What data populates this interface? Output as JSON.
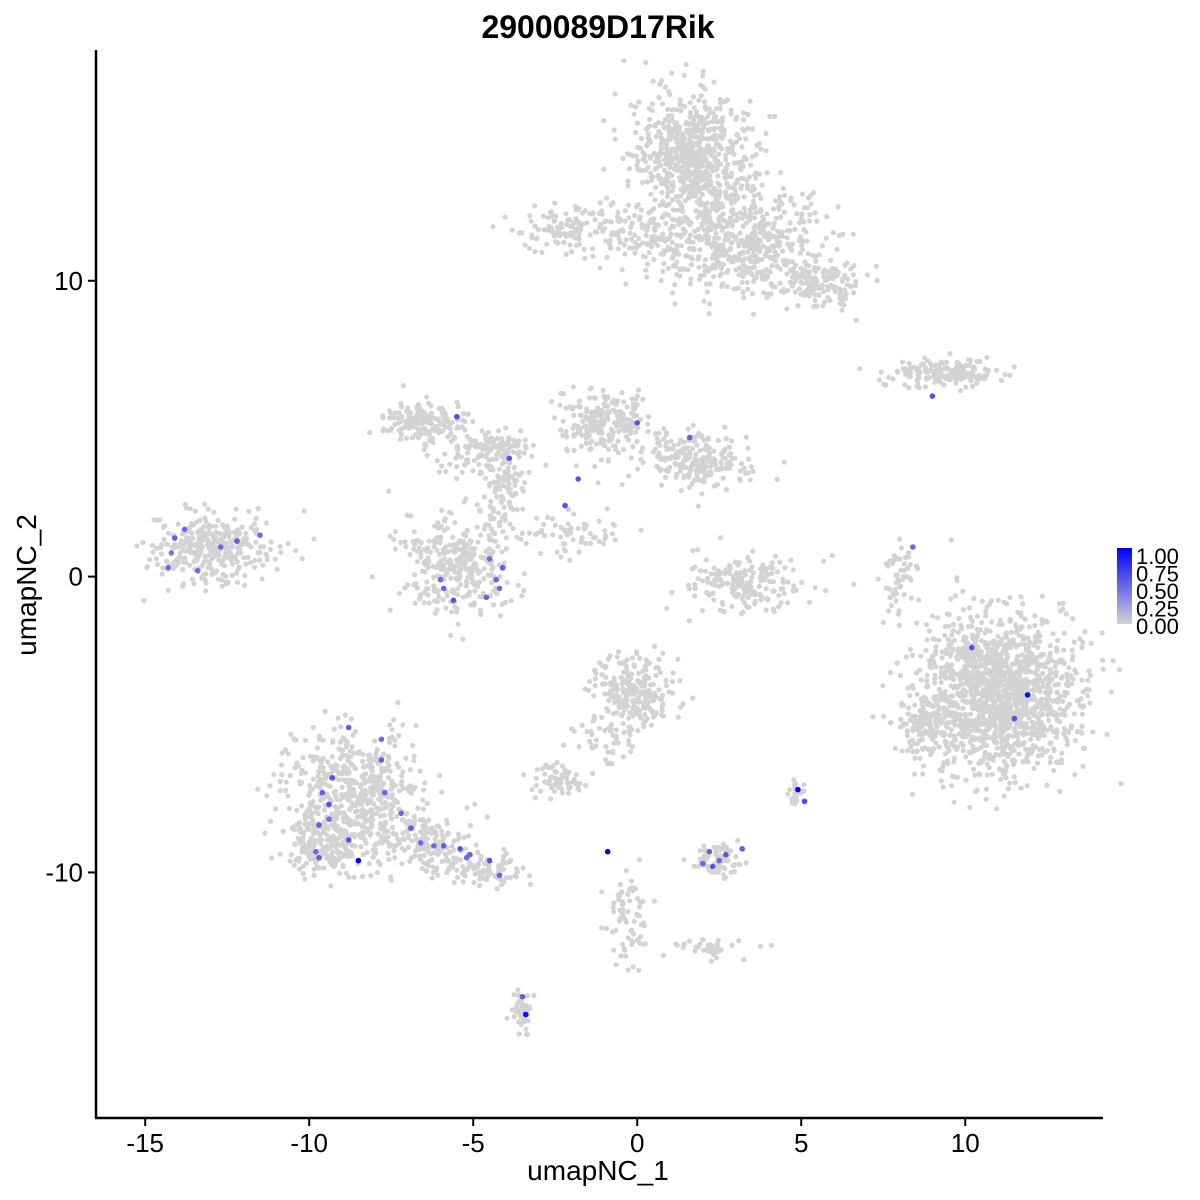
{
  "chart_data": {
    "type": "scatter",
    "title": "2900089D17Rik",
    "xlabel": "umapNC_1",
    "ylabel": "umapNC_2",
    "xlim": [
      -16.5,
      14.2
    ],
    "ylim": [
      -18.3,
      17.8
    ],
    "x_ticks": [
      -15,
      -10,
      -5,
      0,
      5,
      10
    ],
    "y_ticks": [
      -10,
      0,
      10
    ],
    "x_tick_labels": [
      "-15",
      "-10",
      "-5",
      "0",
      "5",
      "10"
    ],
    "y_tick_labels": [
      "-10",
      "0",
      "10"
    ],
    "background_color": "#d3d3d3",
    "high_color": "#0000ff",
    "legend": {
      "position": "right",
      "range": [
        0,
        1
      ],
      "labels": [
        "1.00",
        "0.75",
        "0.50",
        "0.25",
        "0.00"
      ]
    },
    "grid": false,
    "background_clusters": [
      {
        "name": "top-large",
        "blobs": [
          {
            "cx": 1.7,
            "cy": 14.2,
            "sx": 0.9,
            "sy": 1.0,
            "n": 700
          },
          {
            "cx": 3.3,
            "cy": 11.3,
            "sx": 1.1,
            "sy": 0.9,
            "n": 500
          },
          {
            "cx": 5.5,
            "cy": 10.0,
            "sx": 0.6,
            "sy": 0.4,
            "n": 150
          },
          {
            "cx": 0.5,
            "cy": 11.5,
            "sx": 0.8,
            "sy": 0.6,
            "n": 120
          },
          {
            "cx": -2.0,
            "cy": 11.8,
            "sx": 0.9,
            "sy": 0.4,
            "n": 120
          }
        ]
      },
      {
        "name": "upper-right-streak",
        "blobs": [
          {
            "cx": 9.3,
            "cy": 6.9,
            "sx": 0.9,
            "sy": 0.25,
            "n": 160
          }
        ]
      },
      {
        "name": "left-small",
        "blobs": [
          {
            "cx": -13.0,
            "cy": 1.0,
            "sx": 0.9,
            "sy": 0.6,
            "n": 320
          }
        ]
      },
      {
        "name": "center-network",
        "blobs": [
          {
            "cx": -6.5,
            "cy": 5.3,
            "sx": 0.6,
            "sy": 0.35,
            "n": 160
          },
          {
            "cx": -4.5,
            "cy": 4.2,
            "sx": 0.8,
            "sy": 0.4,
            "n": 140
          },
          {
            "cx": -5.5,
            "cy": 0.5,
            "sx": 0.85,
            "sy": 0.9,
            "n": 320
          },
          {
            "cx": -4.0,
            "cy": 2.8,
            "sx": 0.3,
            "sy": 0.8,
            "n": 90
          },
          {
            "cx": -1.0,
            "cy": 5.2,
            "sx": 0.7,
            "sy": 0.6,
            "n": 230
          },
          {
            "cx": 1.8,
            "cy": 4.0,
            "sx": 0.8,
            "sy": 0.5,
            "n": 220
          },
          {
            "cx": -1.8,
            "cy": 1.5,
            "sx": 0.8,
            "sy": 0.35,
            "n": 60
          }
        ]
      },
      {
        "name": "small-center",
        "blobs": [
          {
            "cx": 3.3,
            "cy": -0.3,
            "sx": 0.9,
            "sy": 0.5,
            "n": 180
          },
          {
            "cx": 8.0,
            "cy": 0.0,
            "sx": 0.25,
            "sy": 0.7,
            "n": 50
          }
        ]
      },
      {
        "name": "right-large",
        "blobs": [
          {
            "cx": 11.0,
            "cy": -4.0,
            "sx": 1.2,
            "sy": 1.3,
            "n": 1500
          },
          {
            "cx": 8.8,
            "cy": -5.0,
            "sx": 0.4,
            "sy": 0.6,
            "n": 120
          }
        ]
      },
      {
        "name": "center-lower",
        "blobs": [
          {
            "cx": -0.1,
            "cy": -3.9,
            "sx": 0.6,
            "sy": 0.6,
            "n": 250
          },
          {
            "cx": -2.4,
            "cy": -6.9,
            "sx": 0.4,
            "sy": 0.25,
            "n": 70
          },
          {
            "cx": -1.0,
            "cy": -5.6,
            "sx": 0.6,
            "sy": 0.4,
            "n": 40
          },
          {
            "cx": 2.5,
            "cy": -9.6,
            "sx": 0.4,
            "sy": 0.3,
            "n": 70
          },
          {
            "cx": 4.9,
            "cy": -7.3,
            "sx": 0.15,
            "sy": 0.2,
            "n": 25
          },
          {
            "cx": -0.3,
            "cy": -11.5,
            "sx": 0.3,
            "sy": 0.9,
            "n": 70
          },
          {
            "cx": 2.2,
            "cy": -12.5,
            "sx": 0.5,
            "sy": 0.2,
            "n": 40
          },
          {
            "cx": -3.5,
            "cy": -14.7,
            "sx": 0.15,
            "sy": 0.35,
            "n": 50
          }
        ]
      },
      {
        "name": "lower-left-large",
        "blobs": [
          {
            "cx": -8.6,
            "cy": -7.2,
            "sx": 1.0,
            "sy": 1.0,
            "n": 500
          },
          {
            "cx": -9.6,
            "cy": -9.1,
            "sx": 0.6,
            "sy": 0.5,
            "n": 200
          },
          {
            "cx": -6.7,
            "cy": -9.0,
            "sx": 0.9,
            "sy": 0.5,
            "n": 180
          },
          {
            "cx": -4.8,
            "cy": -9.9,
            "sx": 0.7,
            "sy": 0.3,
            "n": 90
          }
        ]
      }
    ],
    "expressing_points": [
      {
        "x": -14.3,
        "y": 0.3,
        "v": 0.5
      },
      {
        "x": -14.1,
        "y": 1.3,
        "v": 0.55
      },
      {
        "x": -13.8,
        "y": 1.6,
        "v": 0.5
      },
      {
        "x": -14.2,
        "y": 0.8,
        "v": 0.45
      },
      {
        "x": -13.4,
        "y": 0.2,
        "v": 0.5
      },
      {
        "x": -12.7,
        "y": 1.0,
        "v": 0.5
      },
      {
        "x": -12.2,
        "y": 1.2,
        "v": 0.55
      },
      {
        "x": -11.5,
        "y": 1.4,
        "v": 0.5
      },
      {
        "x": -5.5,
        "y": 5.4,
        "v": 0.6
      },
      {
        "x": -3.9,
        "y": 4.0,
        "v": 0.6
      },
      {
        "x": 0.0,
        "y": 5.2,
        "v": 0.6
      },
      {
        "x": 1.6,
        "y": 4.7,
        "v": 0.55
      },
      {
        "x": -1.8,
        "y": 3.3,
        "v": 0.6
      },
      {
        "x": -2.2,
        "y": 2.4,
        "v": 0.6
      },
      {
        "x": -6.0,
        "y": -0.1,
        "v": 0.5
      },
      {
        "x": -5.9,
        "y": -0.4,
        "v": 0.5
      },
      {
        "x": -5.6,
        "y": -0.8,
        "v": 0.6
      },
      {
        "x": -4.5,
        "y": 0.6,
        "v": 0.5
      },
      {
        "x": -4.3,
        "y": -0.1,
        "v": 0.5
      },
      {
        "x": -4.1,
        "y": 0.3,
        "v": 0.55
      },
      {
        "x": -4.6,
        "y": -0.7,
        "v": 0.55
      },
      {
        "x": -4.2,
        "y": -0.4,
        "v": 0.5
      },
      {
        "x": 9.0,
        "y": 6.1,
        "v": 0.6
      },
      {
        "x": 8.4,
        "y": 1.0,
        "v": 0.5
      },
      {
        "x": 10.2,
        "y": -2.4,
        "v": 0.6
      },
      {
        "x": 11.9,
        "y": -4.0,
        "v": 0.95
      },
      {
        "x": 11.5,
        "y": -4.8,
        "v": 0.6
      },
      {
        "x": 4.9,
        "y": -7.2,
        "v": 1.0
      },
      {
        "x": 5.1,
        "y": -7.6,
        "v": 0.65
      },
      {
        "x": -0.9,
        "y": -9.3,
        "v": 1.0
      },
      {
        "x": 2.0,
        "y": -9.7,
        "v": 0.5
      },
      {
        "x": 2.2,
        "y": -9.3,
        "v": 0.55
      },
      {
        "x": 2.3,
        "y": -9.8,
        "v": 0.6
      },
      {
        "x": 2.5,
        "y": -9.6,
        "v": 0.5
      },
      {
        "x": 2.7,
        "y": -9.4,
        "v": 0.6
      },
      {
        "x": 3.2,
        "y": -9.2,
        "v": 0.55
      },
      {
        "x": -3.5,
        "y": -14.2,
        "v": 0.55
      },
      {
        "x": -3.4,
        "y": -14.8,
        "v": 0.95
      },
      {
        "x": -8.8,
        "y": -5.1,
        "v": 0.55
      },
      {
        "x": -7.8,
        "y": -5.5,
        "v": 0.5
      },
      {
        "x": -7.8,
        "y": -6.2,
        "v": 0.55
      },
      {
        "x": -9.3,
        "y": -6.8,
        "v": 0.6
      },
      {
        "x": -9.6,
        "y": -7.3,
        "v": 0.55
      },
      {
        "x": -7.7,
        "y": -7.3,
        "v": 0.5
      },
      {
        "x": -9.4,
        "y": -7.7,
        "v": 0.6
      },
      {
        "x": -9.7,
        "y": -8.4,
        "v": 0.55
      },
      {
        "x": -9.4,
        "y": -8.2,
        "v": 0.5
      },
      {
        "x": -7.2,
        "y": -8.0,
        "v": 0.5
      },
      {
        "x": -6.9,
        "y": -8.5,
        "v": 0.55
      },
      {
        "x": -8.8,
        "y": -8.9,
        "v": 0.6
      },
      {
        "x": -9.8,
        "y": -9.3,
        "v": 0.5
      },
      {
        "x": -9.7,
        "y": -9.5,
        "v": 0.55
      },
      {
        "x": -8.5,
        "y": -9.6,
        "v": 1.0
      },
      {
        "x": -6.6,
        "y": -9.0,
        "v": 0.5
      },
      {
        "x": -6.2,
        "y": -9.1,
        "v": 0.5
      },
      {
        "x": -5.9,
        "y": -9.1,
        "v": 0.55
      },
      {
        "x": -5.4,
        "y": -9.2,
        "v": 0.6
      },
      {
        "x": -5.2,
        "y": -9.5,
        "v": 0.5
      },
      {
        "x": -5.1,
        "y": -9.4,
        "v": 0.55
      },
      {
        "x": -4.5,
        "y": -9.6,
        "v": 0.6
      },
      {
        "x": -4.2,
        "y": -10.1,
        "v": 0.5
      }
    ]
  }
}
